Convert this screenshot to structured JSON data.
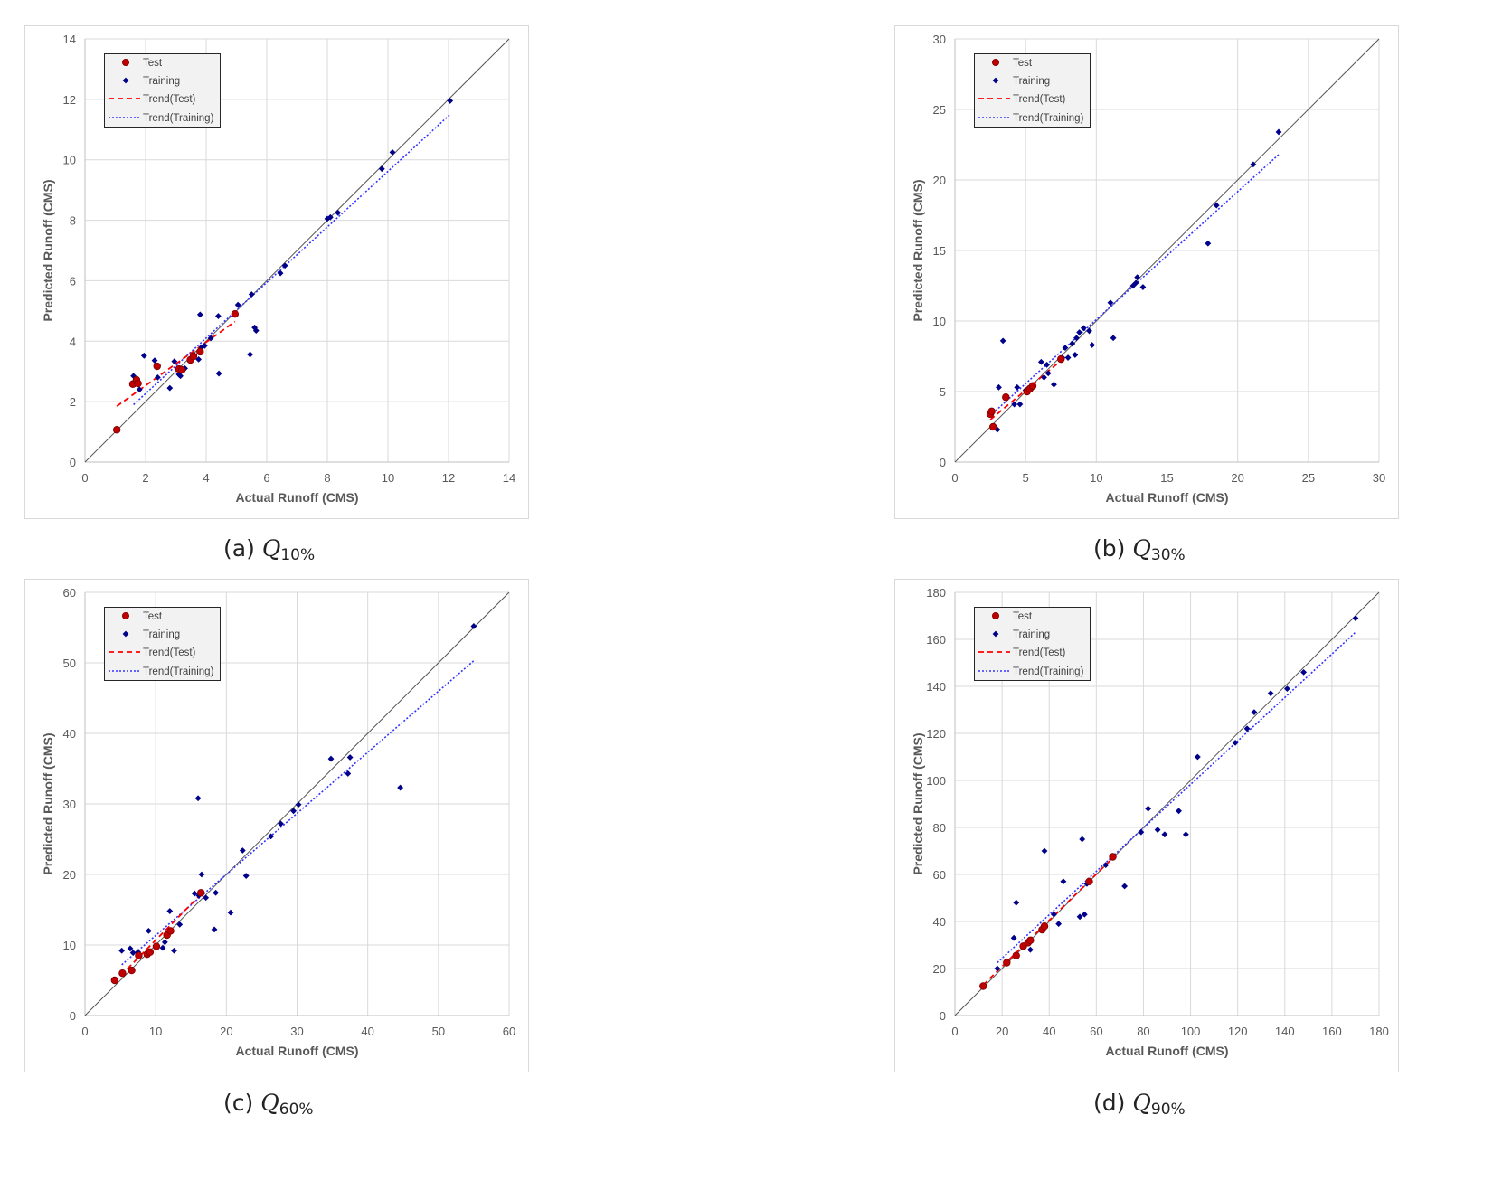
{
  "colors": {
    "test": "#c00000",
    "training": "#00008b",
    "trend_test": "#ff0000",
    "trend_training": "#3333ff",
    "diag": "#555555",
    "grid": "#d9d9d9"
  },
  "chart_data": [
    {
      "id": "a",
      "type": "scatter",
      "caption_prefix": "(a)",
      "caption_symbol": "Q",
      "caption_sub": "10%",
      "xlabel": "Actual Runoff (CMS)",
      "ylabel": "Predicted Runoff (CMS)",
      "xlim": [
        0,
        14
      ],
      "ylim": [
        0,
        14
      ],
      "xticks": [
        0,
        2,
        4,
        6,
        8,
        10,
        12,
        14
      ],
      "yticks": [
        0,
        2,
        4,
        6,
        8,
        10,
        12,
        14
      ],
      "legend": [
        "Test",
        "Training",
        "Trend(Test)",
        "Trend(Training)"
      ],
      "test": [
        [
          1.05,
          1.07
        ],
        [
          1.58,
          2.58
        ],
        [
          1.7,
          2.72
        ],
        [
          1.75,
          2.6
        ],
        [
          2.38,
          3.17
        ],
        [
          3.1,
          3.08
        ],
        [
          3.2,
          3.05
        ],
        [
          3.48,
          3.38
        ],
        [
          3.58,
          3.5
        ],
        [
          3.8,
          3.65
        ],
        [
          4.95,
          4.9
        ]
      ],
      "training": [
        [
          1.6,
          2.85
        ],
        [
          1.8,
          2.4
        ],
        [
          1.95,
          3.52
        ],
        [
          2.3,
          3.36
        ],
        [
          2.4,
          2.8
        ],
        [
          2.8,
          2.45
        ],
        [
          2.95,
          3.33
        ],
        [
          3.1,
          2.9
        ],
        [
          3.15,
          2.85
        ],
        [
          3.3,
          3.1
        ],
        [
          3.6,
          3.55
        ],
        [
          3.75,
          3.4
        ],
        [
          3.8,
          4.88
        ],
        [
          3.85,
          3.8
        ],
        [
          3.95,
          3.85
        ],
        [
          4.15,
          4.1
        ],
        [
          4.4,
          4.83
        ],
        [
          4.42,
          2.93
        ],
        [
          5.05,
          5.2
        ],
        [
          5.45,
          3.56
        ],
        [
          5.5,
          5.55
        ],
        [
          5.6,
          4.45
        ],
        [
          5.65,
          4.35
        ],
        [
          6.45,
          6.25
        ],
        [
          6.6,
          6.5
        ],
        [
          8.0,
          8.05
        ],
        [
          8.1,
          8.1
        ],
        [
          8.35,
          8.25
        ],
        [
          9.8,
          9.7
        ],
        [
          10.15,
          10.25
        ],
        [
          12.05,
          11.95
        ]
      ],
      "trend_test": [
        [
          1.05,
          1.85
        ],
        [
          4.95,
          4.65
        ]
      ],
      "trend_training": [
        [
          1.6,
          1.9
        ],
        [
          12.05,
          11.5
        ]
      ]
    },
    {
      "id": "b",
      "type": "scatter",
      "caption_prefix": "(b)",
      "caption_symbol": "Q",
      "caption_sub": "30%",
      "xlabel": "Actual Runoff (CMS)",
      "ylabel": "Predicted Runoff (CMS)",
      "xlim": [
        0,
        30
      ],
      "ylim": [
        0,
        30
      ],
      "xticks": [
        0,
        5,
        10,
        15,
        20,
        25,
        30
      ],
      "yticks": [
        0,
        5,
        10,
        15,
        20,
        25,
        30
      ],
      "legend": [
        "Test",
        "Training",
        "Trend(Test)",
        "Trend(Training)"
      ],
      "test": [
        [
          2.5,
          3.4
        ],
        [
          2.6,
          3.6
        ],
        [
          2.7,
          2.5
        ],
        [
          3.6,
          4.6
        ],
        [
          5.1,
          5.0
        ],
        [
          5.3,
          5.2
        ],
        [
          5.5,
          5.4
        ],
        [
          7.5,
          7.3
        ]
      ],
      "training": [
        [
          3.0,
          2.3
        ],
        [
          3.1,
          5.3
        ],
        [
          3.4,
          8.6
        ],
        [
          4.2,
          4.1
        ],
        [
          4.4,
          5.3
        ],
        [
          4.6,
          4.1
        ],
        [
          5.0,
          5.1
        ],
        [
          6.1,
          7.1
        ],
        [
          6.3,
          6.0
        ],
        [
          6.5,
          6.9
        ],
        [
          6.6,
          6.3
        ],
        [
          7.0,
          5.5
        ],
        [
          7.6,
          7.4
        ],
        [
          7.8,
          8.1
        ],
        [
          8.0,
          7.4
        ],
        [
          8.3,
          8.4
        ],
        [
          8.5,
          7.6
        ],
        [
          8.6,
          8.8
        ],
        [
          8.8,
          9.2
        ],
        [
          9.1,
          9.5
        ],
        [
          9.5,
          9.3
        ],
        [
          9.7,
          8.3
        ],
        [
          11.0,
          11.3
        ],
        [
          11.2,
          8.8
        ],
        [
          12.6,
          12.5
        ],
        [
          12.8,
          12.7
        ],
        [
          12.9,
          13.1
        ],
        [
          13.3,
          12.4
        ],
        [
          17.9,
          15.5
        ],
        [
          18.5,
          18.2
        ],
        [
          21.1,
          21.1
        ],
        [
          22.9,
          23.4
        ]
      ],
      "trend_test": [
        [
          2.5,
          3.0
        ],
        [
          7.5,
          7.2
        ]
      ],
      "trend_training": [
        [
          2.5,
          3.3
        ],
        [
          22.9,
          21.8
        ]
      ]
    },
    {
      "id": "c",
      "type": "scatter",
      "caption_prefix": "(c)",
      "caption_symbol": "Q",
      "caption_sub": "60%",
      "xlabel": "Actual Runoff (CMS)",
      "ylabel": "Predicted Runoff (CMS)",
      "xlim": [
        0,
        60
      ],
      "ylim": [
        0,
        60
      ],
      "xticks": [
        0,
        10,
        20,
        30,
        40,
        50,
        60
      ],
      "yticks": [
        0,
        10,
        20,
        30,
        40,
        50,
        60
      ],
      "legend": [
        "Test",
        "Training",
        "Trend(Test)",
        "Trend(Training)"
      ],
      "test": [
        [
          4.2,
          5.0
        ],
        [
          5.3,
          6.0
        ],
        [
          6.6,
          6.4
        ],
        [
          7.6,
          8.5
        ],
        [
          8.8,
          8.7
        ],
        [
          9.2,
          9.0
        ],
        [
          10.1,
          9.8
        ],
        [
          11.6,
          11.4
        ],
        [
          12.1,
          12.0
        ],
        [
          16.4,
          17.4
        ]
      ],
      "training": [
        [
          5.2,
          9.2
        ],
        [
          6.4,
          9.5
        ],
        [
          6.8,
          8.9
        ],
        [
          7.5,
          9.0
        ],
        [
          9.0,
          12.0
        ],
        [
          11.0,
          9.6
        ],
        [
          11.3,
          10.4
        ],
        [
          12.0,
          14.8
        ],
        [
          12.6,
          9.2
        ],
        [
          13.4,
          12.9
        ],
        [
          15.5,
          17.3
        ],
        [
          16.0,
          30.8
        ],
        [
          16.1,
          17.0
        ],
        [
          16.5,
          20.0
        ],
        [
          17.1,
          16.7
        ],
        [
          18.3,
          12.2
        ],
        [
          18.5,
          17.4
        ],
        [
          20.6,
          14.6
        ],
        [
          22.3,
          23.4
        ],
        [
          22.8,
          19.8
        ],
        [
          26.3,
          25.4
        ],
        [
          27.7,
          27.2
        ],
        [
          29.5,
          29.0
        ],
        [
          30.2,
          29.9
        ],
        [
          34.8,
          36.4
        ],
        [
          37.2,
          34.3
        ],
        [
          37.5,
          36.6
        ],
        [
          44.6,
          32.3
        ],
        [
          55.0,
          55.2
        ]
      ],
      "trend_test": [
        [
          4.2,
          4.8
        ],
        [
          16.4,
          17.2
        ]
      ],
      "trend_training": [
        [
          5.2,
          7.2
        ],
        [
          55.0,
          50.3
        ]
      ]
    },
    {
      "id": "d",
      "type": "scatter",
      "caption_prefix": "(d)",
      "caption_symbol": "Q",
      "caption_sub": "90%",
      "xlabel": "Actual Runoff (CMS)",
      "ylabel": "Predicted Runoff (CMS)",
      "xlim": [
        0,
        180
      ],
      "ylim": [
        0,
        180
      ],
      "xticks": [
        0,
        20,
        40,
        60,
        80,
        100,
        120,
        140,
        160,
        180
      ],
      "yticks": [
        0,
        20,
        40,
        60,
        80,
        100,
        120,
        140,
        160,
        180
      ],
      "legend": [
        "Test",
        "Training",
        "Trend(Test)",
        "Trend(Training)"
      ],
      "test": [
        [
          12,
          12.5
        ],
        [
          22,
          22.5
        ],
        [
          26,
          25.5
        ],
        [
          29,
          29.5
        ],
        [
          31,
          31
        ],
        [
          32,
          32
        ],
        [
          37,
          36.5
        ],
        [
          38,
          38
        ],
        [
          57,
          57
        ],
        [
          67,
          67.5
        ]
      ],
      "training": [
        [
          18,
          20
        ],
        [
          22,
          23
        ],
        [
          25,
          33
        ],
        [
          26,
          48
        ],
        [
          32,
          28
        ],
        [
          38,
          70
        ],
        [
          42,
          43
        ],
        [
          44,
          39
        ],
        [
          46,
          57
        ],
        [
          53,
          42
        ],
        [
          54,
          75
        ],
        [
          55,
          43
        ],
        [
          56,
          56
        ],
        [
          64,
          64
        ],
        [
          72,
          55
        ],
        [
          79,
          78
        ],
        [
          82,
          88
        ],
        [
          86,
          79
        ],
        [
          89,
          77
        ],
        [
          95,
          87
        ],
        [
          98,
          77
        ],
        [
          103,
          110
        ],
        [
          119,
          116
        ],
        [
          124,
          122
        ],
        [
          127,
          129
        ],
        [
          134,
          137
        ],
        [
          141,
          139
        ],
        [
          148,
          146
        ],
        [
          170,
          169
        ]
      ],
      "trend_test": [
        [
          12,
          13
        ],
        [
          67,
          67
        ]
      ],
      "trend_training": [
        [
          18,
          22.5
        ],
        [
          170,
          163
        ]
      ]
    }
  ]
}
